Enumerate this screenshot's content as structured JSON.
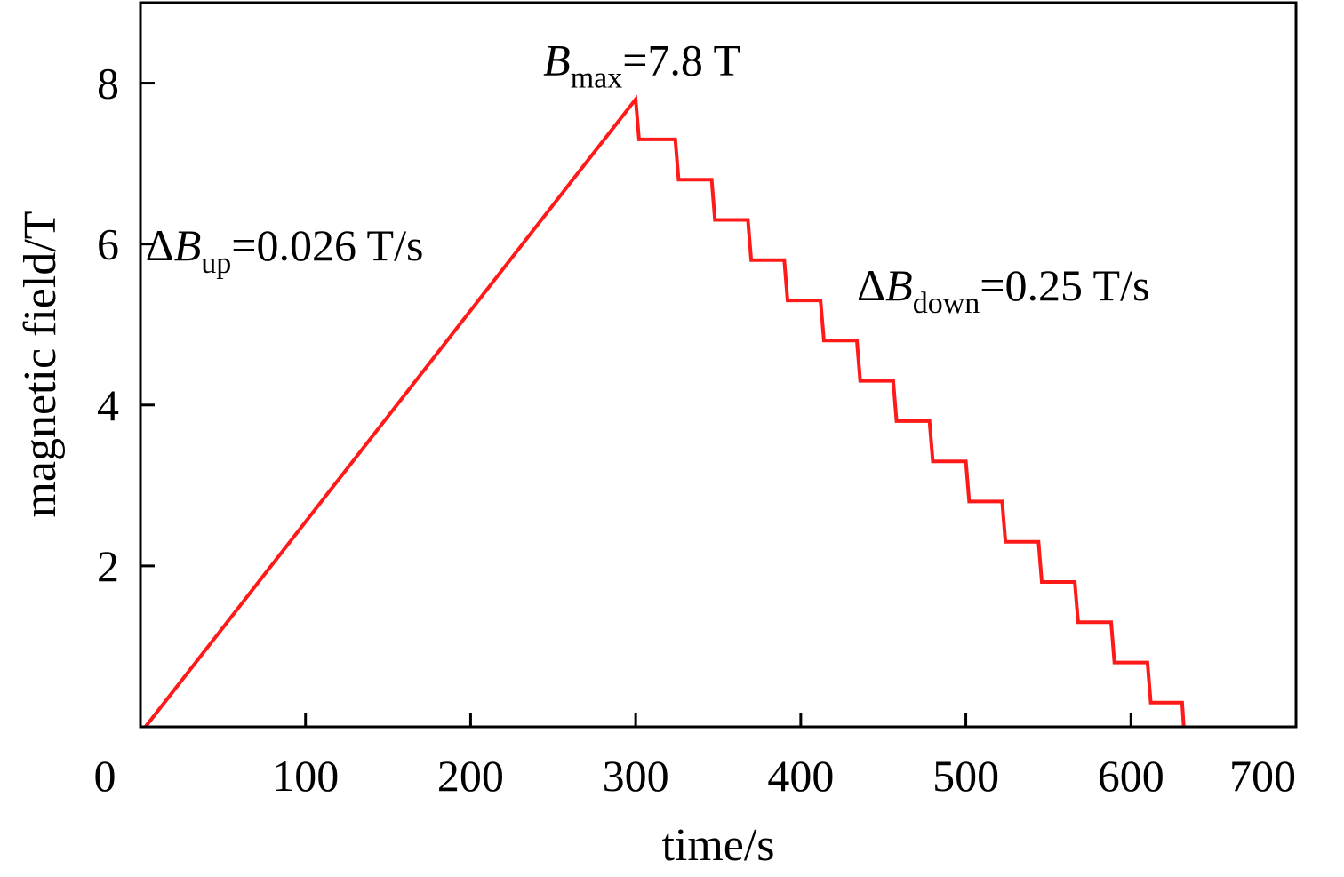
{
  "chart_data": {
    "type": "line",
    "title": "",
    "xlabel": "time/s",
    "ylabel": "magnetic field/T",
    "xlim": [
      0,
      700
    ],
    "ylim": [
      0,
      9
    ],
    "xticks": [
      0,
      100,
      200,
      300,
      400,
      500,
      600,
      700
    ],
    "yticks": [
      2,
      4,
      6,
      8
    ],
    "grid": false,
    "legend": "none",
    "series": [
      {
        "color": "#ff1a1a",
        "x": [
          3,
          300,
          302,
          324,
          326,
          346,
          348,
          368,
          370,
          390,
          392,
          412,
          414,
          434,
          436,
          456,
          458,
          478,
          480,
          500,
          502,
          522,
          524,
          544,
          546,
          566,
          568,
          588,
          590,
          610,
          612,
          631,
          632
        ],
        "y": [
          0,
          7.8,
          7.3,
          7.3,
          6.8,
          6.8,
          6.3,
          6.3,
          5.8,
          5.8,
          5.3,
          5.3,
          4.8,
          4.8,
          4.3,
          4.3,
          3.8,
          3.8,
          3.3,
          3.3,
          2.8,
          2.8,
          2.3,
          2.3,
          1.8,
          1.8,
          1.3,
          1.3,
          0.8,
          0.8,
          0.3,
          0.3,
          0
        ]
      }
    ],
    "annotations": [
      {
        "id": "up",
        "prefix": "Δ",
        "base": "B",
        "sub": "up",
        "suffix": "=0.026 T/s",
        "x": 3,
        "y": 5.8
      },
      {
        "id": "max",
        "prefix": "",
        "base": "B",
        "sub": "max",
        "suffix": "=7.8 T",
        "x": 244,
        "y": 8.1
      },
      {
        "id": "down",
        "prefix": "Δ",
        "base": "B",
        "sub": "down",
        "suffix": "=0.25 T/s",
        "x": 434,
        "y": 5.3
      }
    ]
  }
}
